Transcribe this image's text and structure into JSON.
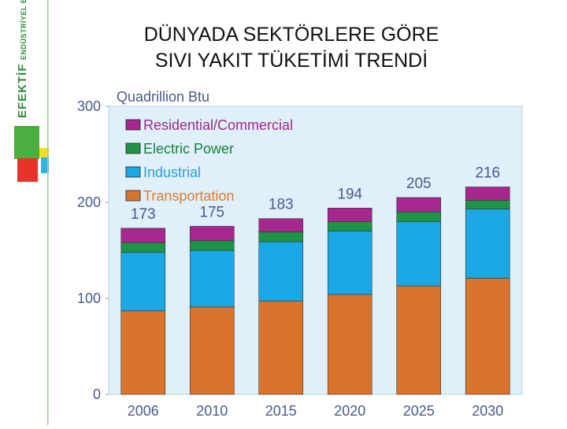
{
  "brand": {
    "name": "EFEKTİF",
    "subtitle": "ENDÜSTRİYEL ENERJİ A.Ş.",
    "colors": {
      "green": "#4cae3f",
      "red": "#e8332a",
      "yellow": "#f5e11a",
      "cyan": "#2fb3e6"
    }
  },
  "slide": {
    "title_line1": "DÜNYADA SEKTÖRLERE GÖRE",
    "title_line2": "SIVI YAKIT TÜKETİMİ TRENDİ"
  },
  "chart_data": {
    "type": "bar",
    "stacked": true,
    "unit_label": "Quadrillion Btu",
    "categories": [
      "2006",
      "2010",
      "2015",
      "2020",
      "2025",
      "2030"
    ],
    "yticks": [
      "0",
      "100",
      "200",
      "300"
    ],
    "ylim": [
      0,
      300
    ],
    "grid": false,
    "legend_position": "top-left",
    "series": [
      {
        "name": "Transportation",
        "color": "#d8742c",
        "label_color": "#e07b2e",
        "values": [
          87,
          91,
          97,
          104,
          113,
          121
        ]
      },
      {
        "name": "Industrial",
        "color": "#1aa7e3",
        "label_color": "#2b9fd8",
        "values": [
          61,
          59,
          62,
          66,
          67,
          72
        ]
      },
      {
        "name": "Electric Power",
        "color": "#1e9447",
        "label_color": "#1a7e3c",
        "values": [
          10,
          10,
          10,
          10,
          10,
          9
        ]
      },
      {
        "name": "Residential/Commercial",
        "color": "#a6278d",
        "label_color": "#9b2a86",
        "values": [
          15,
          15,
          14,
          14,
          15,
          14
        ]
      }
    ],
    "totals": [
      "173",
      "175",
      "183",
      "194",
      "205",
      "216"
    ],
    "colors": {
      "plot_bg": "#dff0fa",
      "axis_text": "#4a5a8a"
    }
  }
}
